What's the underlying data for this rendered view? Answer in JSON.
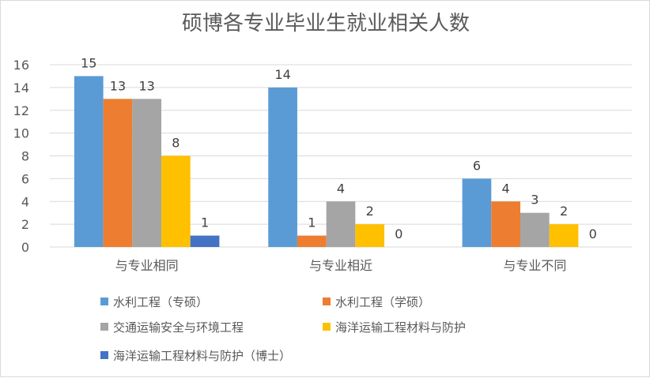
{
  "chart_data": {
    "type": "bar",
    "title": "硕博各专业毕业生就业相关人数",
    "categories": [
      "与专业相同",
      "与专业相近",
      "与专业不同"
    ],
    "series": [
      {
        "name": "水利工程（专硕）",
        "color": "#5b9bd5",
        "values": [
          15,
          14,
          6
        ]
      },
      {
        "name": "水利工程（学硕）",
        "color": "#ed7d31",
        "values": [
          13,
          1,
          4
        ]
      },
      {
        "name": "交通运输安全与环境工程",
        "color": "#a5a5a5",
        "values": [
          13,
          4,
          3
        ]
      },
      {
        "name": "海洋运输工程材料与防护",
        "color": "#ffc000",
        "values": [
          8,
          2,
          2
        ]
      },
      {
        "name": "海洋运输工程材料与防护（博士）",
        "color": "#4472c4",
        "values": [
          1,
          0,
          0
        ]
      }
    ],
    "ylim": [
      0,
      16
    ],
    "yticks": [
      0,
      2,
      4,
      6,
      8,
      10,
      12,
      14,
      16
    ],
    "grid": true,
    "data_labels": true,
    "legend_position": "bottom"
  }
}
